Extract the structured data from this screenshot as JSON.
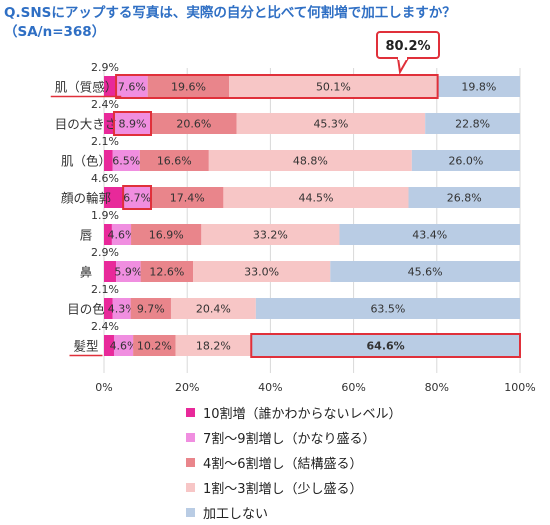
{
  "title_lines": [
    "Q.SNSにアップする写真は、実際の自分と比べて何割増で加工しますか？",
    "（SA/n=368）"
  ],
  "colors": {
    "series": [
      "#e8299a",
      "#f08ee0",
      "#e9858b",
      "#f7c6c6",
      "#b9cce4"
    ],
    "highlight": "#e0303a",
    "title": "#2f6fc4"
  },
  "chart_data": {
    "type": "bar",
    "orientation": "horizontal",
    "stacked": true,
    "categories": [
      "肌（質感）",
      "目の大きさ",
      "肌（色）",
      "顔の輪郭",
      "唇",
      "鼻",
      "目の色",
      "髪型"
    ],
    "series": [
      {
        "name": "10割増（誰かわからないレベル）",
        "values": [
          2.9,
          2.4,
          2.1,
          4.6,
          1.9,
          2.9,
          2.1,
          2.4
        ]
      },
      {
        "name": "7割～9割増し（かなり盛る）",
        "values": [
          7.6,
          8.9,
          6.5,
          6.7,
          4.6,
          5.9,
          4.3,
          4.6
        ]
      },
      {
        "name": "4割～6割増し（結構盛る）",
        "values": [
          19.6,
          20.6,
          16.6,
          17.4,
          16.9,
          12.6,
          9.7,
          10.2
        ]
      },
      {
        "name": "1割～3割増し（少し盛る）",
        "values": [
          50.1,
          45.3,
          48.8,
          44.5,
          33.2,
          33.0,
          20.4,
          18.2
        ]
      },
      {
        "name": "加工しない",
        "values": [
          19.8,
          22.8,
          26.0,
          26.8,
          43.4,
          45.6,
          63.5,
          64.6
        ]
      }
    ],
    "value_labels": [
      [
        "2.9%",
        "7.6%",
        "19.6%",
        "50.1%",
        "19.8%"
      ],
      [
        "2.4%",
        "8.9%",
        "20.6%",
        "45.3%",
        "22.8%"
      ],
      [
        "2.1%",
        "6.5%",
        "16.6%",
        "48.8%",
        "26.0%"
      ],
      [
        "4.6%",
        "6.7%",
        "17.4%",
        "44.5%",
        "26.8%"
      ],
      [
        "1.9%",
        "4.6%",
        "16.9%",
        "33.2%",
        "43.4%"
      ],
      [
        "2.9%",
        "5.9%",
        "12.6%",
        "33.0%",
        "45.6%"
      ],
      [
        "2.1%",
        "4.3%",
        "9.7%",
        "20.4%",
        "63.5%"
      ],
      [
        "2.4%",
        "4.6%",
        "10.2%",
        "18.2%",
        "64.6%"
      ]
    ],
    "x_ticks": [
      0,
      20,
      40,
      60,
      80,
      100
    ],
    "x_tick_labels": [
      "0%",
      "20%",
      "40%",
      "60%",
      "80%",
      "100%"
    ],
    "xlim": [
      0,
      100
    ],
    "grid": true,
    "legend_position": "bottom",
    "callout": {
      "label": "80.2%"
    },
    "highlighted_categories": [
      "肌（質感）",
      "髪型"
    ],
    "highlighted_segments": [
      {
        "row": 0,
        "series": [
          1,
          2,
          3
        ]
      },
      {
        "row": 1,
        "series": [
          1
        ]
      },
      {
        "row": 3,
        "series": [
          1
        ]
      },
      {
        "row": 7,
        "series": [
          4
        ]
      }
    ]
  }
}
